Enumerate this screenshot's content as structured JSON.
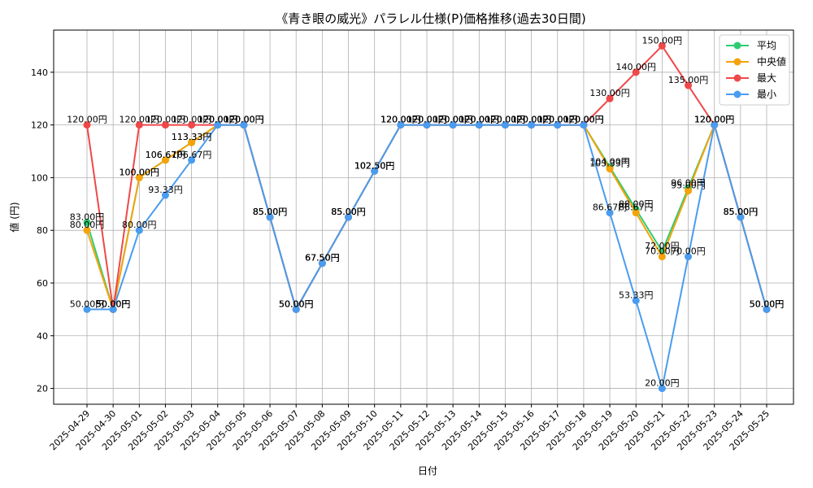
{
  "chart_data": {
    "type": "line",
    "title": "《青き眼の威光》パラレル仕様(P)価格推移(過去30日間)",
    "xlabel": "日付",
    "ylabel": "値 (円)",
    "ylim": [
      14,
      156
    ],
    "yticks": [
      20,
      40,
      60,
      80,
      100,
      120,
      140
    ],
    "grid": true,
    "legend_position": "top-right",
    "categories": [
      "2025-04-29",
      "2025-04-30",
      "2025-05-01",
      "2025-05-02",
      "2025-05-03",
      "2025-05-04",
      "2025-05-05",
      "2025-05-06",
      "2025-05-07",
      "2025-05-08",
      "2025-05-09",
      "2025-05-10",
      "2025-05-11",
      "2025-05-12",
      "2025-05-13",
      "2025-05-14",
      "2025-05-15",
      "2025-05-16",
      "2025-05-17",
      "2025-05-18",
      "2025-05-19",
      "2025-05-20",
      "2025-05-21",
      "2025-05-22",
      "2025-05-23",
      "2025-05-24",
      "2025-05-25"
    ],
    "series": [
      {
        "name": "平均",
        "color": "#2ecc71",
        "values": [
          83.0,
          50.0,
          100.0,
          106.67,
          113.33,
          120.0,
          120.0,
          85.0,
          50.0,
          67.5,
          85.0,
          102.5,
          120.0,
          120.0,
          120.0,
          120.0,
          120.0,
          120.0,
          120.0,
          120.0,
          104.0,
          88.0,
          72.0,
          96.0,
          120.0,
          85.0,
          50.0
        ]
      },
      {
        "name": "中央値",
        "color": "#f5a30a",
        "values": [
          80.0,
          50.0,
          100.0,
          106.67,
          113.33,
          120.0,
          120.0,
          85.0,
          50.0,
          67.5,
          85.0,
          102.5,
          120.0,
          120.0,
          120.0,
          120.0,
          120.0,
          120.0,
          120.0,
          120.0,
          103.33,
          86.67,
          70.0,
          95.0,
          120.0,
          85.0,
          50.0
        ]
      },
      {
        "name": "最大",
        "color": "#f04848",
        "values": [
          120.0,
          50.0,
          120.0,
          120.0,
          120.0,
          120.0,
          120.0,
          85.0,
          50.0,
          67.5,
          85.0,
          102.5,
          120.0,
          120.0,
          120.0,
          120.0,
          120.0,
          120.0,
          120.0,
          120.0,
          130.0,
          140.0,
          150.0,
          135.0,
          120.0,
          85.0,
          50.0
        ]
      },
      {
        "name": "最小",
        "color": "#4a9cf0",
        "values": [
          50.0,
          50.0,
          80.0,
          93.33,
          106.67,
          120.0,
          120.0,
          85.0,
          50.0,
          67.5,
          85.0,
          102.5,
          120.0,
          120.0,
          120.0,
          120.0,
          120.0,
          120.0,
          120.0,
          120.0,
          86.67,
          53.33,
          20.0,
          70.0,
          120.0,
          85.0,
          50.0
        ]
      }
    ],
    "label_suffix": "円"
  }
}
